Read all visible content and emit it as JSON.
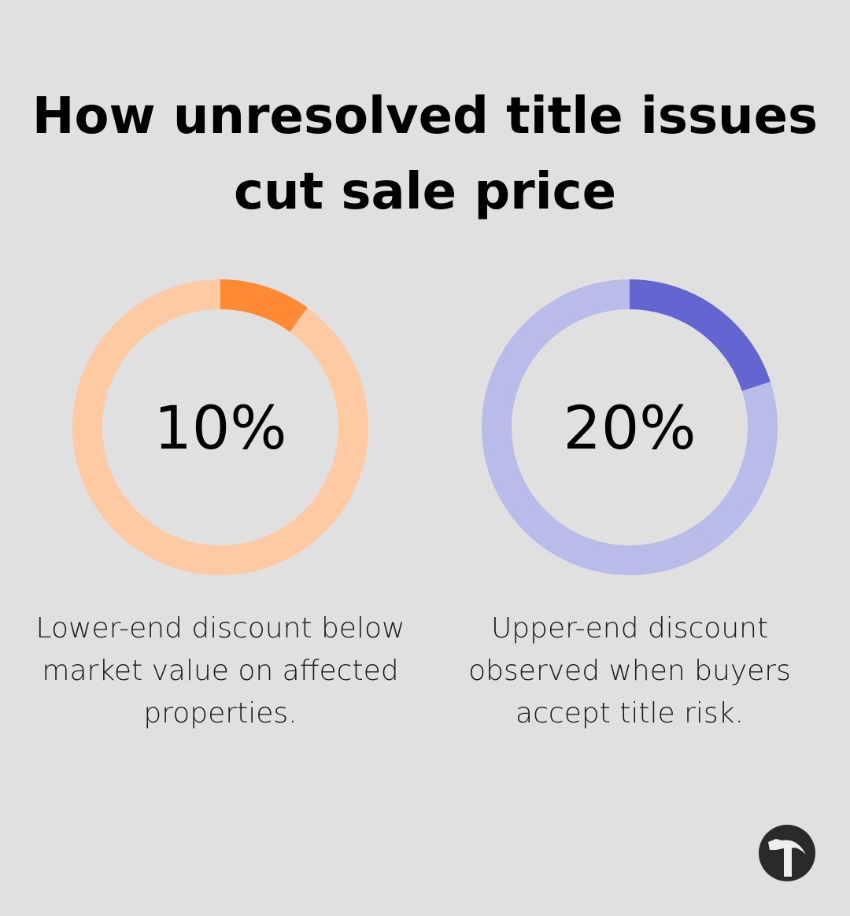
{
  "title": "How unresolved title issues cut sale price",
  "chart_data": [
    {
      "type": "pie",
      "variant": "donut",
      "values": [
        10,
        90
      ],
      "label": "10%",
      "description": "Lower-end discount below market value on affected properties.",
      "colors": {
        "value": "#ff8a33",
        "rest": "#fecaa3"
      }
    },
    {
      "type": "pie",
      "variant": "donut",
      "values": [
        20,
        80
      ],
      "label": "20%",
      "description": "Upper-end discount observed when buyers accept title risk.",
      "colors": {
        "value": "#6366d1",
        "rest": "#b9bce9"
      }
    }
  ],
  "logo": {
    "icon": "hammer-icon"
  }
}
